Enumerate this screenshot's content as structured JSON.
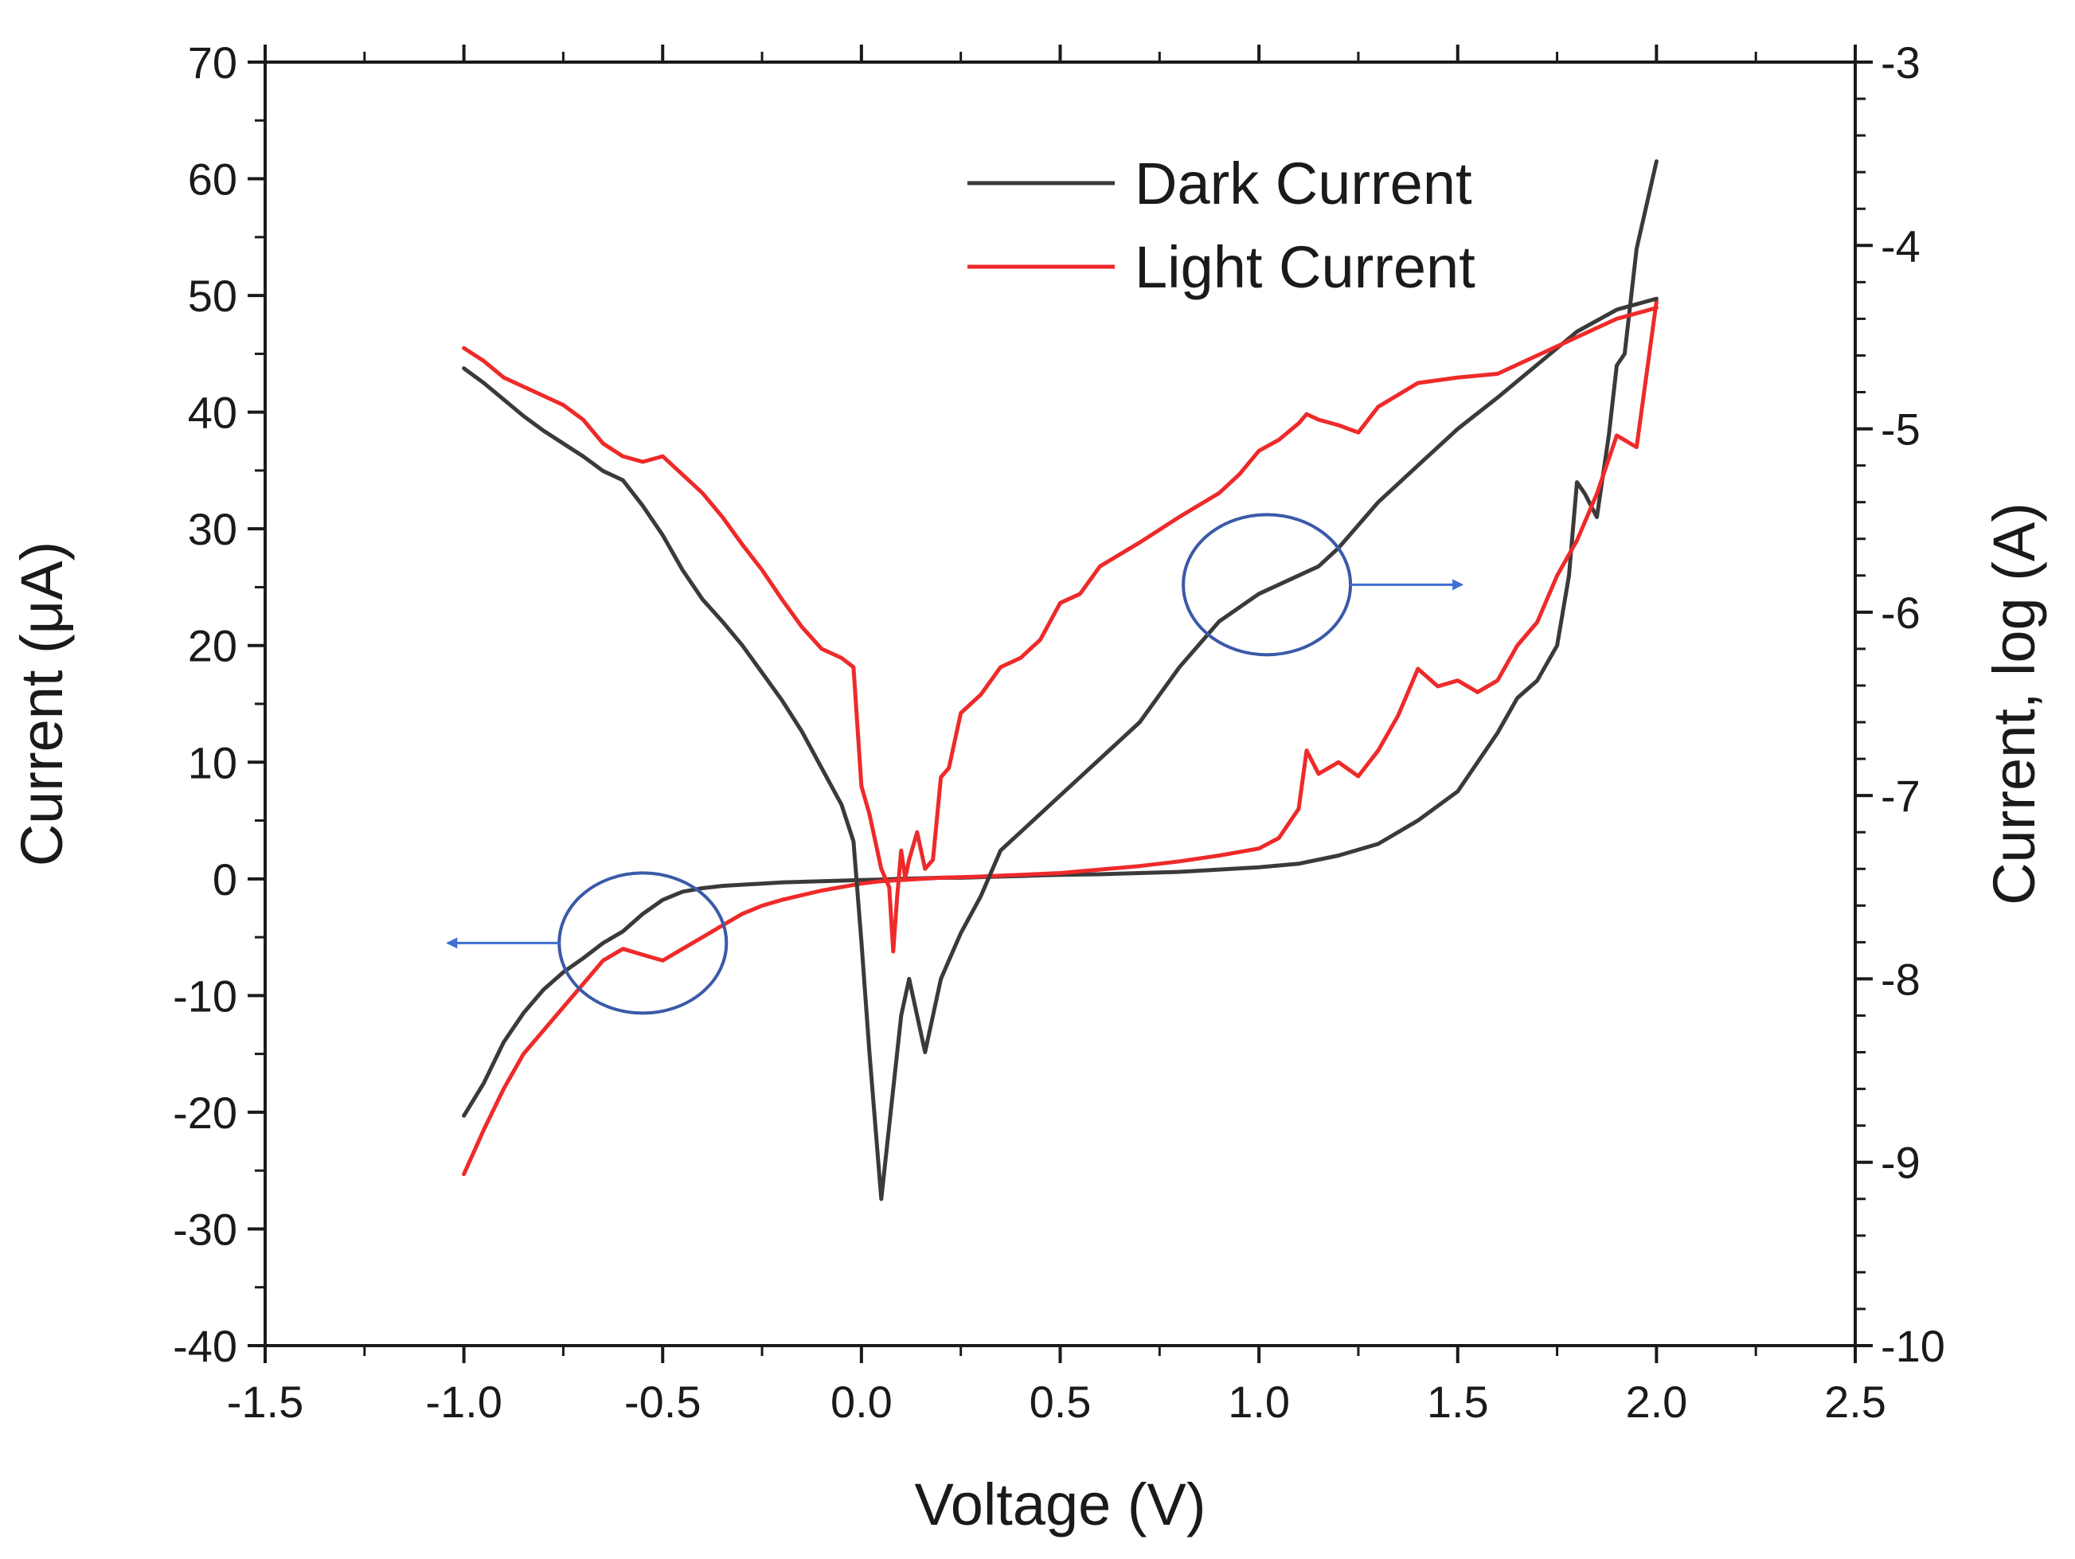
{
  "chart_data": {
    "type": "line",
    "xlabel": "Voltage (V)",
    "ylabel_left": "Current (μA)",
    "ylabel_right": "Current, log (A)",
    "xlim": [
      -1.5,
      2.5
    ],
    "ylim_left": [
      -40,
      70
    ],
    "ylim_right": [
      -10,
      -3
    ],
    "x_ticks": [
      "-1.5",
      "-1.0",
      "-0.5",
      "0.0",
      "0.5",
      "1.0",
      "1.5",
      "2.0",
      "2.5"
    ],
    "y_ticks_left": [
      "-40",
      "-30",
      "-20",
      "-10",
      "0",
      "10",
      "20",
      "30",
      "40",
      "50",
      "60",
      "70"
    ],
    "y_ticks_right": [
      "-10",
      "-9",
      "-8",
      "-7",
      "-6",
      "-5",
      "-4",
      "-3"
    ],
    "legend_position": "top-right",
    "grid": false,
    "series": [
      {
        "name": "Dark Current",
        "color": "#3a3a3a",
        "axis": "left",
        "x": [
          -1.0,
          -0.95,
          -0.9,
          -0.85,
          -0.8,
          -0.75,
          -0.7,
          -0.65,
          -0.6,
          -0.55,
          -0.5,
          -0.45,
          -0.4,
          -0.35,
          -0.3,
          -0.25,
          -0.2,
          -0.15,
          -0.1,
          -0.05,
          0.0,
          0.05,
          0.1,
          0.15,
          0.2,
          0.25,
          0.3,
          0.35,
          0.4,
          0.45,
          0.5,
          0.6,
          0.7,
          0.8,
          0.9,
          1.0,
          1.1,
          1.2,
          1.3,
          1.4,
          1.5,
          1.55,
          1.6,
          1.65,
          1.7,
          1.75,
          1.78,
          1.8,
          1.82,
          1.85,
          1.88,
          1.9,
          1.92,
          1.95,
          2.0
        ],
        "y": [
          -20.3,
          -17.5,
          -14.0,
          -11.5,
          -9.5,
          -8.0,
          -6.8,
          -5.5,
          -4.5,
          -3.0,
          -1.8,
          -1.1,
          -0.8,
          -0.6,
          -0.5,
          -0.4,
          -0.3,
          -0.25,
          -0.2,
          -0.15,
          -0.1,
          -0.05,
          0.0,
          0.05,
          0.1,
          0.1,
          0.15,
          0.2,
          0.25,
          0.3,
          0.35,
          0.4,
          0.5,
          0.6,
          0.8,
          1.0,
          1.3,
          2.0,
          3.0,
          5.0,
          7.5,
          10.0,
          12.5,
          15.5,
          17.0,
          20.0,
          26.0,
          34.0,
          33.0,
          31.0,
          38.0,
          44.0,
          45.0,
          54.0,
          61.5
        ]
      },
      {
        "name": "Light Current",
        "color": "#ee2a2a",
        "axis": "left",
        "x": [
          -1.0,
          -0.95,
          -0.9,
          -0.85,
          -0.8,
          -0.75,
          -0.7,
          -0.65,
          -0.6,
          -0.55,
          -0.5,
          -0.45,
          -0.4,
          -0.35,
          -0.3,
          -0.25,
          -0.2,
          -0.15,
          -0.1,
          -0.05,
          0.0,
          0.05,
          0.1,
          0.2,
          0.3,
          0.4,
          0.5,
          0.6,
          0.7,
          0.8,
          0.9,
          1.0,
          1.05,
          1.1,
          1.12,
          1.15,
          1.2,
          1.25,
          1.3,
          1.35,
          1.4,
          1.45,
          1.5,
          1.55,
          1.6,
          1.65,
          1.7,
          1.75,
          1.8,
          1.85,
          1.9,
          1.95,
          2.0
        ],
        "y": [
          -25.3,
          -21.5,
          -18.0,
          -15.0,
          -13.0,
          -11.0,
          -9.0,
          -7.0,
          -6.0,
          -6.5,
          -7.0,
          -6.0,
          -5.0,
          -4.0,
          -3.0,
          -2.3,
          -1.8,
          -1.4,
          -1.0,
          -0.7,
          -0.4,
          -0.2,
          -0.1,
          0.1,
          0.2,
          0.35,
          0.5,
          0.8,
          1.1,
          1.5,
          2.0,
          2.6,
          3.5,
          6.0,
          11.0,
          9.0,
          10.0,
          8.8,
          11.0,
          14.0,
          18.0,
          16.5,
          17.0,
          16.0,
          17.0,
          20.0,
          22.0,
          26.0,
          29.0,
          33.0,
          38.0,
          37.0,
          49.5
        ]
      },
      {
        "name": "Dark Current",
        "color": "#3a3a3a",
        "axis": "right",
        "x": [
          -1.0,
          -0.95,
          -0.9,
          -0.85,
          -0.8,
          -0.75,
          -0.7,
          -0.65,
          -0.6,
          -0.55,
          -0.5,
          -0.45,
          -0.4,
          -0.35,
          -0.3,
          -0.25,
          -0.2,
          -0.15,
          -0.1,
          -0.05,
          -0.02,
          0.0,
          0.02,
          0.05,
          0.08,
          0.1,
          0.12,
          0.14,
          0.16,
          0.2,
          0.25,
          0.3,
          0.35,
          0.4,
          0.5,
          0.6,
          0.7,
          0.8,
          0.9,
          1.0,
          1.05,
          1.1,
          1.15,
          1.2,
          1.3,
          1.4,
          1.5,
          1.6,
          1.7,
          1.8,
          1.9,
          2.0
        ],
        "y": [
          -4.67,
          -4.75,
          -4.84,
          -4.93,
          -5.01,
          -5.08,
          -5.15,
          -5.23,
          -5.28,
          -5.42,
          -5.58,
          -5.77,
          -5.93,
          -6.05,
          -6.18,
          -6.33,
          -6.48,
          -6.65,
          -6.85,
          -7.05,
          -7.25,
          -7.8,
          -8.4,
          -9.2,
          -8.6,
          -8.2,
          -8.0,
          -8.2,
          -8.4,
          -8.0,
          -7.75,
          -7.55,
          -7.3,
          -7.2,
          -7.0,
          -6.8,
          -6.6,
          -6.3,
          -6.05,
          -5.9,
          -5.85,
          -5.8,
          -5.75,
          -5.65,
          -5.4,
          -5.2,
          -5.0,
          -4.83,
          -4.65,
          -4.47,
          -4.35,
          -4.29
        ]
      },
      {
        "name": "Light Current",
        "color": "#ee2a2a",
        "axis": "right",
        "x": [
          -1.0,
          -0.95,
          -0.9,
          -0.85,
          -0.8,
          -0.75,
          -0.7,
          -0.65,
          -0.6,
          -0.55,
          -0.5,
          -0.45,
          -0.4,
          -0.35,
          -0.3,
          -0.25,
          -0.2,
          -0.15,
          -0.1,
          -0.05,
          -0.02,
          0.0,
          0.02,
          0.05,
          0.07,
          0.08,
          0.09,
          0.1,
          0.11,
          0.12,
          0.14,
          0.16,
          0.18,
          0.2,
          0.22,
          0.25,
          0.3,
          0.35,
          0.4,
          0.45,
          0.5,
          0.55,
          0.6,
          0.7,
          0.8,
          0.9,
          0.95,
          1.0,
          1.05,
          1.1,
          1.12,
          1.15,
          1.2,
          1.25,
          1.3,
          1.4,
          1.5,
          1.6,
          1.7,
          1.8,
          1.9,
          2.0
        ],
        "y": [
          -4.56,
          -4.63,
          -4.72,
          -4.77,
          -4.82,
          -4.87,
          -4.95,
          -5.08,
          -5.15,
          -5.18,
          -5.15,
          -5.25,
          -5.35,
          -5.48,
          -5.63,
          -5.77,
          -5.93,
          -6.08,
          -6.2,
          -6.25,
          -6.3,
          -6.95,
          -7.1,
          -7.4,
          -7.5,
          -7.85,
          -7.55,
          -7.3,
          -7.45,
          -7.35,
          -7.2,
          -7.4,
          -7.35,
          -6.9,
          -6.85,
          -6.55,
          -6.45,
          -6.3,
          -6.25,
          -6.15,
          -5.95,
          -5.9,
          -5.75,
          -5.62,
          -5.48,
          -5.35,
          -5.25,
          -5.12,
          -5.06,
          -4.97,
          -4.92,
          -4.95,
          -4.98,
          -5.02,
          -4.88,
          -4.75,
          -4.72,
          -4.7,
          -4.6,
          -4.5,
          -4.4,
          -4.34
        ]
      }
    ],
    "annotations": [
      {
        "type": "circle",
        "target_axis": "left",
        "x": -0.55,
        "y": -5.5
      },
      {
        "type": "circle",
        "target_axis": "right",
        "x": 1.02,
        "y": -5.85
      }
    ],
    "legend": {
      "entries": [
        {
          "label": "Dark Current",
          "color": "#3a3a3a"
        },
        {
          "label": "Light Current",
          "color": "#ee2a2a"
        }
      ]
    }
  }
}
